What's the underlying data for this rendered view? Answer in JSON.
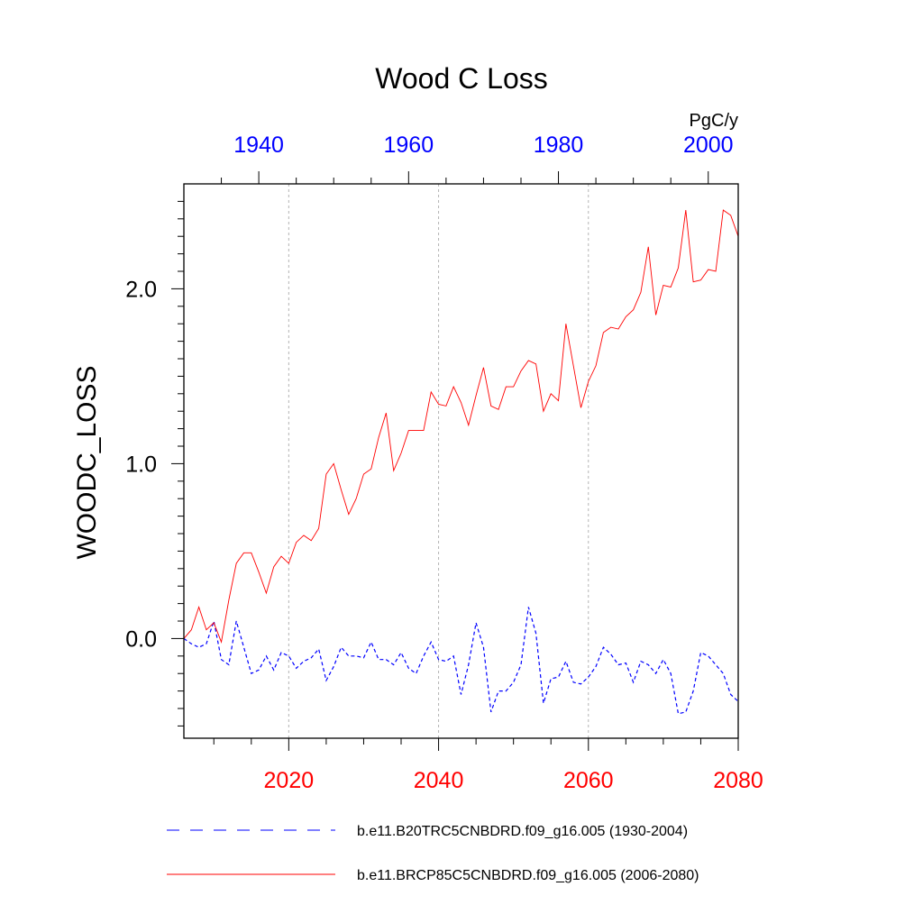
{
  "chart_data": {
    "type": "line",
    "title": "Wood C Loss",
    "ylabel": "WOODC_LOSS",
    "units": "PgC/y",
    "ylim": [
      -0.57,
      2.6
    ],
    "yticks": [
      "2.0",
      "1.0",
      "0.0"
    ],
    "ytick_values": [
      2.0,
      1.0,
      0.0
    ],
    "top_axis": {
      "range": [
        1930,
        2004
      ],
      "ticks": [
        1940,
        1960,
        1980,
        2000
      ],
      "labels": [
        "1940",
        "1960",
        "1980",
        "2000"
      ],
      "color": "#0000ff"
    },
    "bottom_axis": {
      "range": [
        2006,
        2080
      ],
      "ticks": [
        2020,
        2040,
        2060,
        2080
      ],
      "labels": [
        "2020",
        "2040",
        "2060",
        "2080"
      ],
      "color": "#ff0000"
    },
    "series": [
      {
        "name": "b.e11.B20TRC5CNBDRD.f09_g16.005 (1930-2004)",
        "axis": "top",
        "color": "#0000ff",
        "dash": true,
        "start": 1930,
        "values": [
          0.0,
          -0.03,
          -0.05,
          -0.03,
          0.1,
          -0.12,
          -0.15,
          0.1,
          -0.05,
          -0.2,
          -0.18,
          -0.1,
          -0.18,
          -0.08,
          -0.1,
          -0.17,
          -0.13,
          -0.11,
          -0.06,
          -0.24,
          -0.16,
          -0.05,
          -0.1,
          -0.1,
          -0.11,
          -0.02,
          -0.12,
          -0.12,
          -0.15,
          -0.08,
          -0.17,
          -0.2,
          -0.1,
          -0.02,
          -0.12,
          -0.13,
          -0.1,
          -0.32,
          -0.15,
          0.09,
          -0.05,
          -0.42,
          -0.3,
          -0.3,
          -0.25,
          -0.15,
          0.18,
          0.03,
          -0.37,
          -0.23,
          -0.22,
          -0.13,
          -0.25,
          -0.26,
          -0.22,
          -0.16,
          -0.05,
          -0.09,
          -0.15,
          -0.14,
          -0.25,
          -0.13,
          -0.15,
          -0.2,
          -0.12,
          -0.2,
          -0.43,
          -0.42,
          -0.3,
          -0.08,
          -0.1,
          -0.15,
          -0.2,
          -0.32,
          -0.36
        ]
      },
      {
        "name": "b.e11.BRCP85C5CNBDRD.f09_g16.005 (2006-2080)",
        "axis": "bottom",
        "color": "#ff0000",
        "dash": false,
        "start": 2006,
        "values": [
          0.0,
          0.05,
          0.18,
          0.05,
          0.09,
          -0.02,
          0.22,
          0.43,
          0.49,
          0.49,
          0.38,
          0.26,
          0.41,
          0.47,
          0.43,
          0.55,
          0.59,
          0.56,
          0.63,
          0.94,
          1.0,
          0.85,
          0.71,
          0.8,
          0.94,
          0.97,
          1.15,
          1.29,
          0.96,
          1.06,
          1.19,
          1.19,
          1.19,
          1.41,
          1.34,
          1.33,
          1.44,
          1.35,
          1.22,
          1.39,
          1.55,
          1.33,
          1.31,
          1.44,
          1.44,
          1.53,
          1.59,
          1.57,
          1.3,
          1.4,
          1.36,
          1.8,
          1.56,
          1.32,
          1.47,
          1.56,
          1.75,
          1.78,
          1.77,
          1.84,
          1.88,
          1.98,
          2.24,
          1.85,
          2.02,
          2.01,
          2.12,
          2.45,
          2.04,
          2.05,
          2.11,
          2.1,
          2.45,
          2.42,
          2.3
        ]
      }
    ]
  }
}
